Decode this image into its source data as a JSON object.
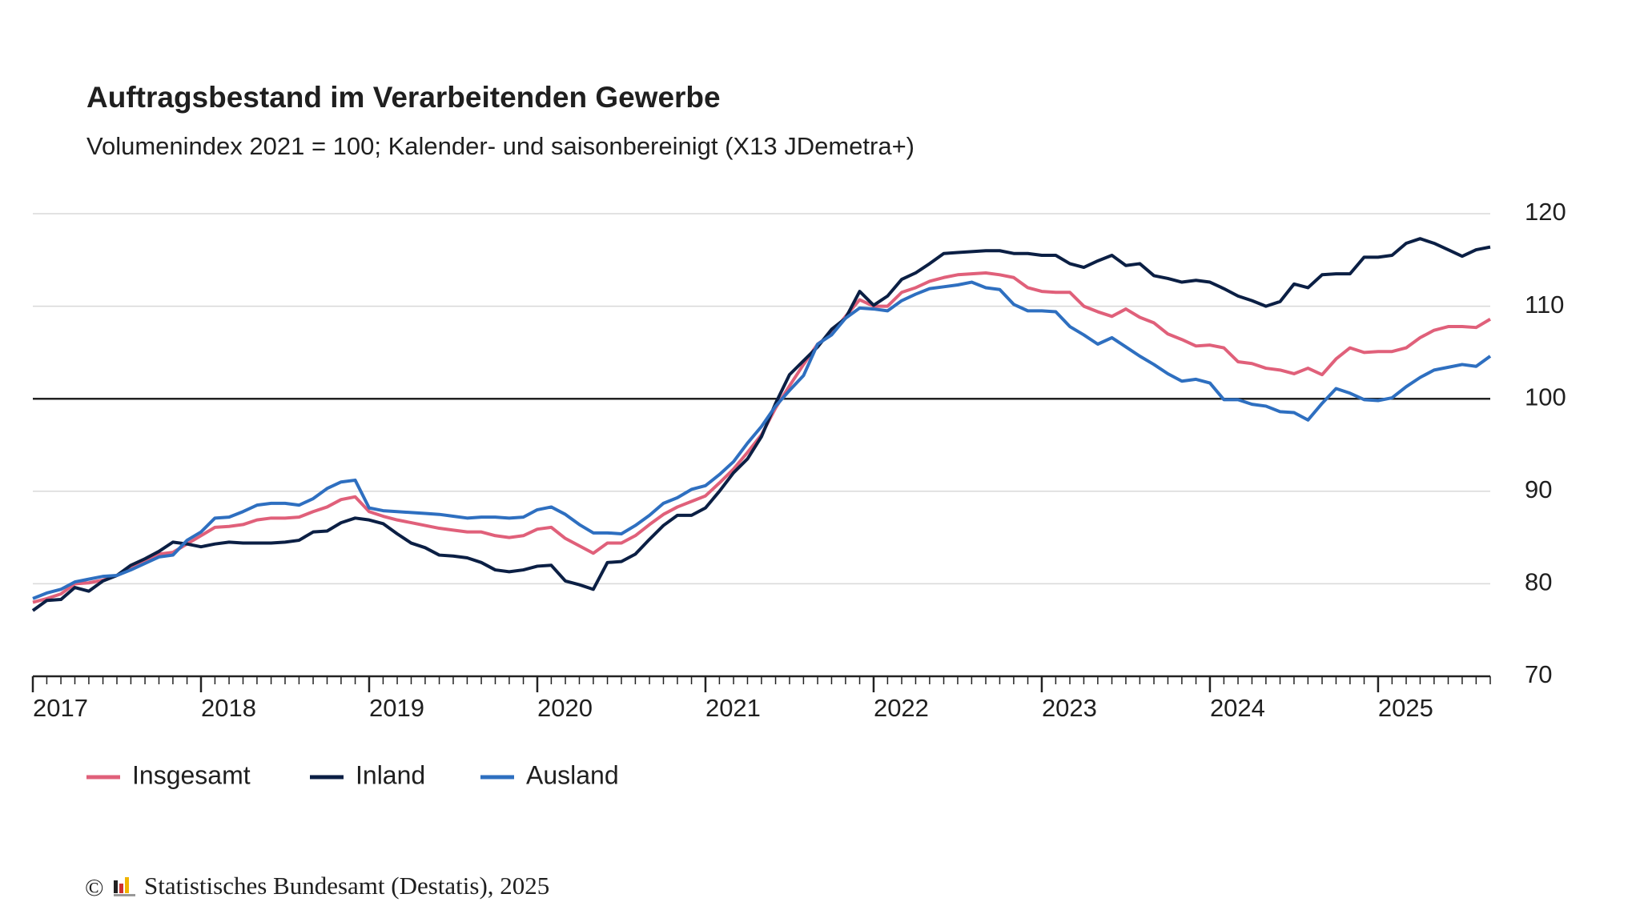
{
  "chart_data": {
    "type": "line",
    "title": "Auftragsbestand im Verarbeitenden Gewerbe",
    "subtitle": "Volumenindex 2021 = 100; Kalender- und saisonbereinigt (X13 JDemetra+)",
    "x": [
      2017,
      2017.083,
      2017.167,
      2017.25,
      2017.333,
      2017.417,
      2017.5,
      2017.583,
      2017.667,
      2017.75,
      2017.833,
      2017.917,
      2018,
      2018.083,
      2018.167,
      2018.25,
      2018.333,
      2018.417,
      2018.5,
      2018.583,
      2018.667,
      2018.75,
      2018.833,
      2018.917,
      2019,
      2019.083,
      2019.167,
      2019.25,
      2019.333,
      2019.417,
      2019.5,
      2019.583,
      2019.667,
      2019.75,
      2019.833,
      2019.917,
      2020,
      2020.083,
      2020.167,
      2020.25,
      2020.333,
      2020.417,
      2020.5,
      2020.583,
      2020.667,
      2020.75,
      2020.833,
      2020.917,
      2021,
      2021.083,
      2021.167,
      2021.25,
      2021.333,
      2021.417,
      2021.5,
      2021.583,
      2021.667,
      2021.75,
      2021.833,
      2021.917,
      2022,
      2022.083,
      2022.167,
      2022.25,
      2022.333,
      2022.417,
      2022.5,
      2022.583,
      2022.667,
      2022.75,
      2022.833,
      2022.917,
      2023,
      2023.083,
      2023.167,
      2023.25,
      2023.333,
      2023.417,
      2023.5,
      2023.583,
      2023.667,
      2023.75,
      2023.833,
      2023.917,
      2024,
      2024.083,
      2024.167,
      2024.25,
      2024.333,
      2024.417,
      2024.5,
      2024.583,
      2024.667,
      2024.75,
      2024.833,
      2024.917,
      2025,
      2025.083,
      2025.167,
      2025.25,
      2025.333,
      2025.417,
      2025.5,
      2025.583,
      2025.667
    ],
    "series": [
      {
        "name": "Insgesamt",
        "color": "#e0607a",
        "values": [
          78.0,
          78.4,
          78.9,
          80.0,
          80.1,
          80.4,
          80.9,
          81.6,
          82.5,
          83.2,
          83.4,
          84.3,
          85.2,
          86.1,
          86.2,
          86.4,
          86.9,
          87.1,
          87.1,
          87.2,
          87.8,
          88.3,
          89.1,
          89.4,
          87.8,
          87.3,
          86.9,
          86.6,
          86.3,
          86.0,
          85.8,
          85.6,
          85.6,
          85.2,
          85.0,
          85.2,
          85.9,
          86.1,
          84.9,
          84.1,
          83.3,
          84.4,
          84.4,
          85.2,
          86.4,
          87.5,
          88.3,
          88.9,
          89.5,
          90.9,
          92.4,
          94.2,
          96.1,
          99.0,
          101.4,
          103.7,
          105.9,
          107.0,
          108.9,
          110.7,
          110.0,
          110.0,
          111.5,
          112.0,
          112.7,
          113.1,
          113.4,
          113.5,
          113.6,
          113.4,
          113.1,
          112.0,
          111.6,
          111.5,
          111.5,
          110.0,
          109.4,
          108.9,
          109.7,
          108.8,
          108.2,
          107.0,
          106.4,
          105.7,
          105.8,
          105.5,
          104.0,
          103.8,
          103.3,
          103.1,
          102.7,
          103.3,
          102.6,
          104.3,
          105.5,
          105.0,
          105.1,
          105.1,
          105.5,
          106.6,
          107.4,
          107.8,
          107.8,
          107.7,
          108.6
        ]
      },
      {
        "name": "Inland",
        "color": "#0b1f44",
        "values": [
          77.1,
          78.2,
          78.3,
          79.6,
          79.2,
          80.3,
          80.9,
          82.0,
          82.7,
          83.5,
          84.5,
          84.3,
          84.0,
          84.3,
          84.5,
          84.4,
          84.4,
          84.4,
          84.5,
          84.7,
          85.6,
          85.7,
          86.6,
          87.1,
          86.9,
          86.5,
          85.4,
          84.4,
          83.9,
          83.1,
          83.0,
          82.8,
          82.3,
          81.5,
          81.3,
          81.5,
          81.9,
          82.0,
          80.3,
          79.9,
          79.4,
          82.3,
          82.4,
          83.2,
          84.8,
          86.3,
          87.4,
          87.4,
          88.2,
          90.0,
          92.0,
          93.5,
          95.9,
          99.5,
          102.6,
          104.1,
          105.6,
          107.5,
          108.7,
          111.6,
          110.1,
          111.1,
          112.9,
          113.6,
          114.6,
          115.7,
          115.8,
          115.9,
          116.0,
          116.0,
          115.7,
          115.7,
          115.5,
          115.5,
          114.6,
          114.2,
          114.9,
          115.5,
          114.4,
          114.6,
          113.3,
          113.0,
          112.6,
          112.8,
          112.6,
          111.9,
          111.1,
          110.6,
          110.0,
          110.5,
          112.4,
          112.0,
          113.4,
          113.5,
          113.5,
          115.3,
          115.3,
          115.5,
          116.8,
          117.3,
          116.8,
          116.1,
          115.4,
          116.1,
          116.4
        ]
      },
      {
        "name": "Ausland",
        "color": "#2e6fc0",
        "values": [
          78.4,
          79.0,
          79.4,
          80.2,
          80.5,
          80.8,
          80.9,
          81.5,
          82.2,
          82.9,
          83.1,
          84.7,
          85.6,
          87.1,
          87.2,
          87.8,
          88.5,
          88.7,
          88.7,
          88.5,
          89.2,
          90.3,
          91.0,
          91.2,
          88.2,
          87.9,
          87.8,
          87.7,
          87.6,
          87.5,
          87.3,
          87.1,
          87.2,
          87.2,
          87.1,
          87.2,
          88.0,
          88.3,
          87.5,
          86.4,
          85.5,
          85.5,
          85.4,
          86.3,
          87.4,
          88.7,
          89.3,
          90.2,
          90.6,
          91.8,
          93.2,
          95.2,
          97.0,
          99.2,
          100.9,
          102.5,
          105.9,
          106.9,
          108.7,
          109.8,
          109.7,
          109.5,
          110.6,
          111.3,
          111.9,
          112.1,
          112.3,
          112.6,
          112.0,
          111.8,
          110.2,
          109.5,
          109.5,
          109.4,
          107.8,
          106.9,
          105.9,
          106.6,
          105.6,
          104.6,
          103.7,
          102.7,
          101.9,
          102.1,
          101.7,
          99.9,
          99.9,
          99.4,
          99.2,
          98.6,
          98.5,
          97.7,
          99.5,
          101.1,
          100.6,
          99.9,
          99.8,
          100.1,
          101.3,
          102.3,
          103.1,
          103.4,
          103.7,
          103.5,
          104.6
        ]
      }
    ],
    "xlim": [
      2017,
      2025.667
    ],
    "xticks": [
      2017,
      2018,
      2019,
      2020,
      2021,
      2022,
      2023,
      2024,
      2025
    ],
    "ylim": [
      70,
      120
    ],
    "yticks": [
      70,
      80,
      90,
      100,
      110,
      120
    ],
    "reference_line": 100,
    "grid": true,
    "legend": "bottom-left",
    "copyright": "©",
    "source": "Statistisches Bundesamt (Destatis), 2025"
  }
}
